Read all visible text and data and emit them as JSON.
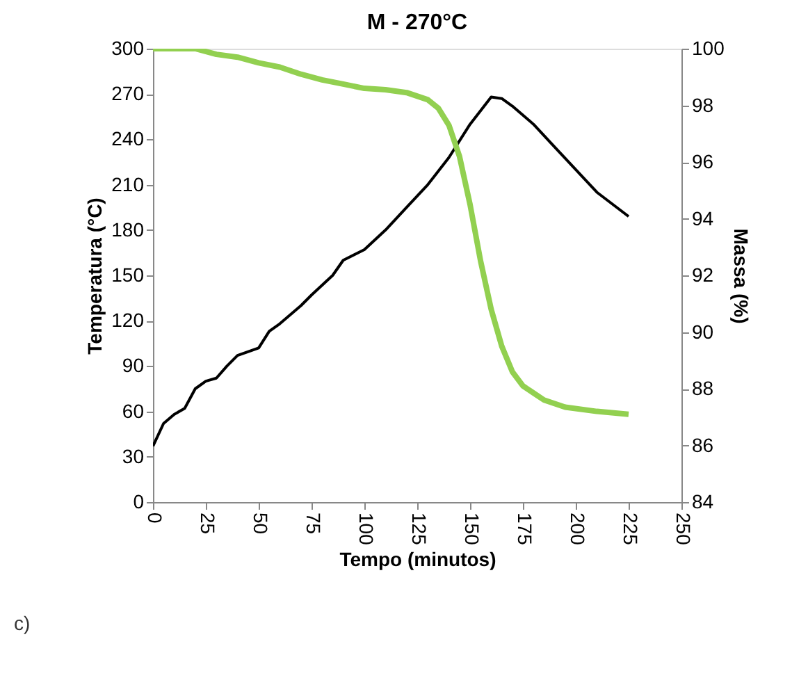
{
  "chart_data": {
    "type": "line",
    "title": "M - 270°C",
    "xlabel": "Tempo (minutos)",
    "ylabel": "Temperatura (°C)",
    "y2label": "Massa (%)",
    "xlim": [
      0,
      250
    ],
    "xticks": [
      0,
      25,
      50,
      75,
      100,
      125,
      150,
      175,
      200,
      225,
      250
    ],
    "ylim": [
      0,
      300
    ],
    "yticks": [
      0,
      30,
      60,
      90,
      120,
      150,
      180,
      210,
      240,
      270,
      300
    ],
    "y2lim": [
      84,
      100
    ],
    "y2ticks": [
      84,
      86,
      88,
      90,
      92,
      94,
      96,
      98,
      100
    ],
    "grid": false,
    "annotations": [
      "c)"
    ],
    "series": [
      {
        "color": "#000000",
        "x": [
          0,
          5,
          10,
          15,
          20,
          25,
          30,
          35,
          40,
          50,
          55,
          60,
          70,
          75,
          85,
          90,
          100,
          110,
          120,
          130,
          140,
          150,
          160,
          165,
          170,
          180,
          190,
          200,
          210,
          225
        ],
        "values": [
          37,
          52,
          58,
          62,
          75,
          80,
          82,
          90,
          97,
          102,
          113,
          118,
          130,
          137,
          150,
          160,
          167,
          180,
          195,
          210,
          228,
          250,
          268,
          267,
          262,
          250,
          235,
          220,
          205,
          189
        ]
      },
      {
        "color": "#92d050",
        "axis": "y2",
        "x": [
          0,
          20,
          30,
          40,
          50,
          60,
          70,
          80,
          90,
          100,
          110,
          120,
          130,
          135,
          140,
          145,
          150,
          155,
          160,
          165,
          170,
          175,
          185,
          195,
          210,
          225
        ],
        "values": [
          100,
          100,
          99.8,
          99.7,
          99.5,
          99.35,
          99.1,
          98.9,
          98.75,
          98.6,
          98.55,
          98.45,
          98.2,
          97.9,
          97.3,
          96.2,
          94.5,
          92.5,
          90.8,
          89.5,
          88.6,
          88.1,
          87.6,
          87.35,
          87.2,
          87.1
        ]
      }
    ]
  }
}
